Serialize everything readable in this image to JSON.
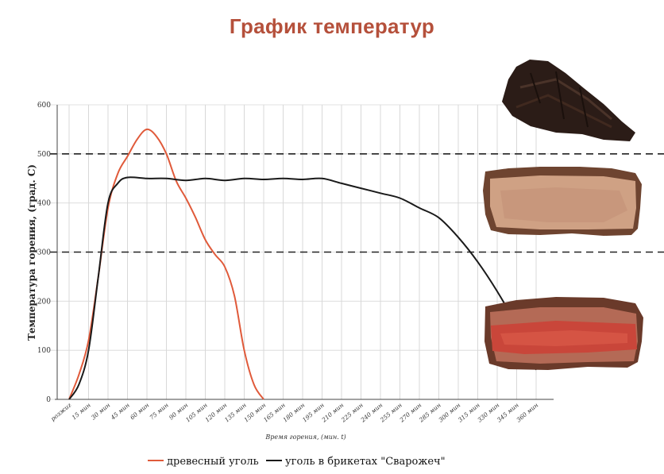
{
  "title": "График температур",
  "chart_data": {
    "type": "line",
    "ylabel": "Температура горения, (град. С)",
    "xlabel": "Время горения, (мин. t)",
    "ylim": [
      0,
      600
    ],
    "yticks": [
      0,
      100,
      200,
      300,
      400,
      500,
      600
    ],
    "categories": [
      "розжиг",
      "15 мин",
      "30 мин",
      "45 мин",
      "60 мин",
      "75 мин",
      "90 мин",
      "105 мин",
      "120 мин",
      "135 мин",
      "150 мин",
      "165 мин",
      "180 мин",
      "195 мин",
      "210 мин",
      "225 мин",
      "240 мин",
      "255 мин",
      "270 мин",
      "285 мин",
      "300 мин",
      "315 мин",
      "330 мин",
      "345 мин",
      "360 мин"
    ],
    "reference_lines": [
      300,
      500
    ],
    "grid": true,
    "legend_position": "bottom",
    "series": [
      {
        "name": "древесный уголь",
        "color": "#e05a3a",
        "x": [
          0,
          7.5,
          15,
          22.5,
          30,
          37.5,
          45,
          52.5,
          60,
          67.5,
          75,
          82.5,
          90,
          97.5,
          105,
          112.5,
          120,
          127.5,
          135,
          142.5,
          150
        ],
        "values": [
          0,
          50,
          120,
          250,
          390,
          460,
          495,
          530,
          550,
          535,
          500,
          445,
          410,
          370,
          325,
          295,
          270,
          210,
          100,
          30,
          0
        ]
      },
      {
        "name": "уголь в брикетах \"Сварожеч\"",
        "color": "#1a1a1a",
        "x": [
          0,
          7.5,
          15,
          22.5,
          30,
          37.5,
          45,
          60,
          75,
          90,
          105,
          120,
          135,
          150,
          165,
          180,
          195,
          210,
          225,
          240,
          255,
          270,
          285,
          300,
          315,
          330,
          345,
          360
        ],
        "values": [
          0,
          30,
          100,
          250,
          400,
          440,
          452,
          450,
          450,
          446,
          450,
          446,
          450,
          448,
          450,
          448,
          450,
          440,
          430,
          420,
          410,
          390,
          370,
          330,
          280,
          220,
          150,
          60
        ]
      }
    ]
  },
  "legend": {
    "item1": "древесный уголь",
    "item2": "уголь в брикетах \"Сварожеч\""
  },
  "images": [
    {
      "name": "overcooked-steak-image",
      "color": "#2a1a15"
    },
    {
      "name": "medium-steak-image",
      "color": "#c99a7e"
    },
    {
      "name": "rare-steak-image",
      "color": "#c94a3c"
    }
  ]
}
